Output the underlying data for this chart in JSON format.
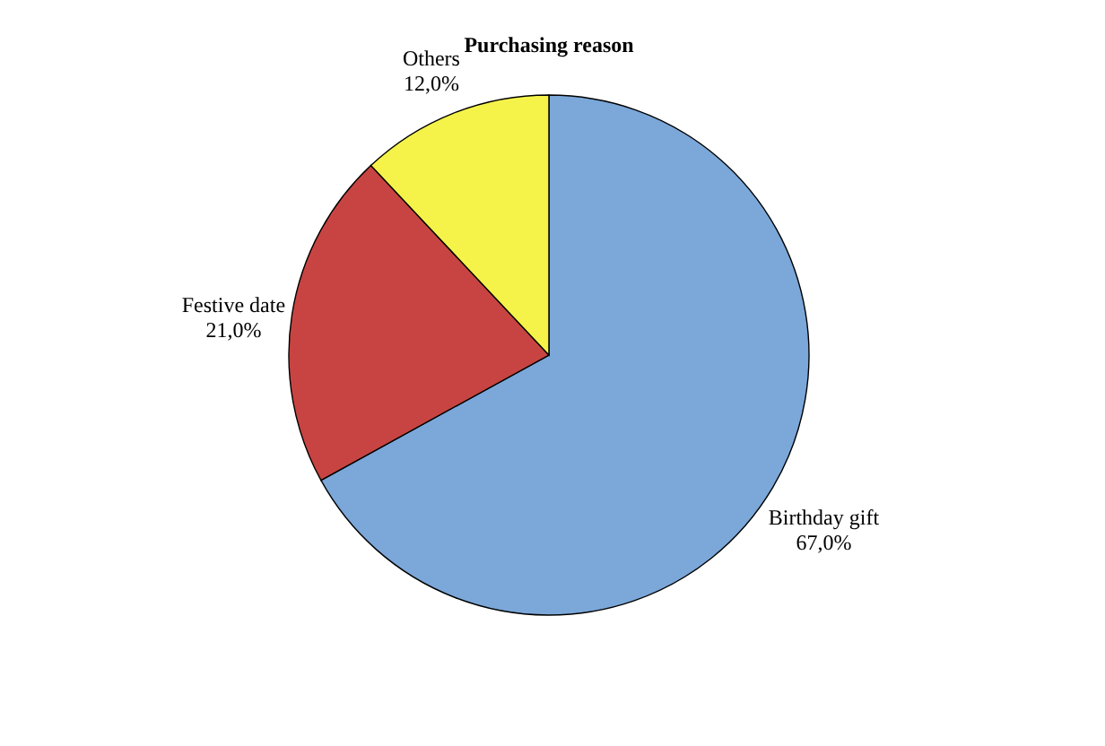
{
  "chart_data": {
    "type": "pie",
    "title": "Purchasing reason",
    "categories": [
      "Birthday gift",
      "Festive date",
      "Others"
    ],
    "values": [
      67,
      21,
      12
    ],
    "value_labels": [
      "67,0%",
      "21,0%",
      "12,0%"
    ],
    "colors": [
      "#7ba7d9",
      "#c84442",
      "#f5f34a"
    ],
    "legend": false
  }
}
